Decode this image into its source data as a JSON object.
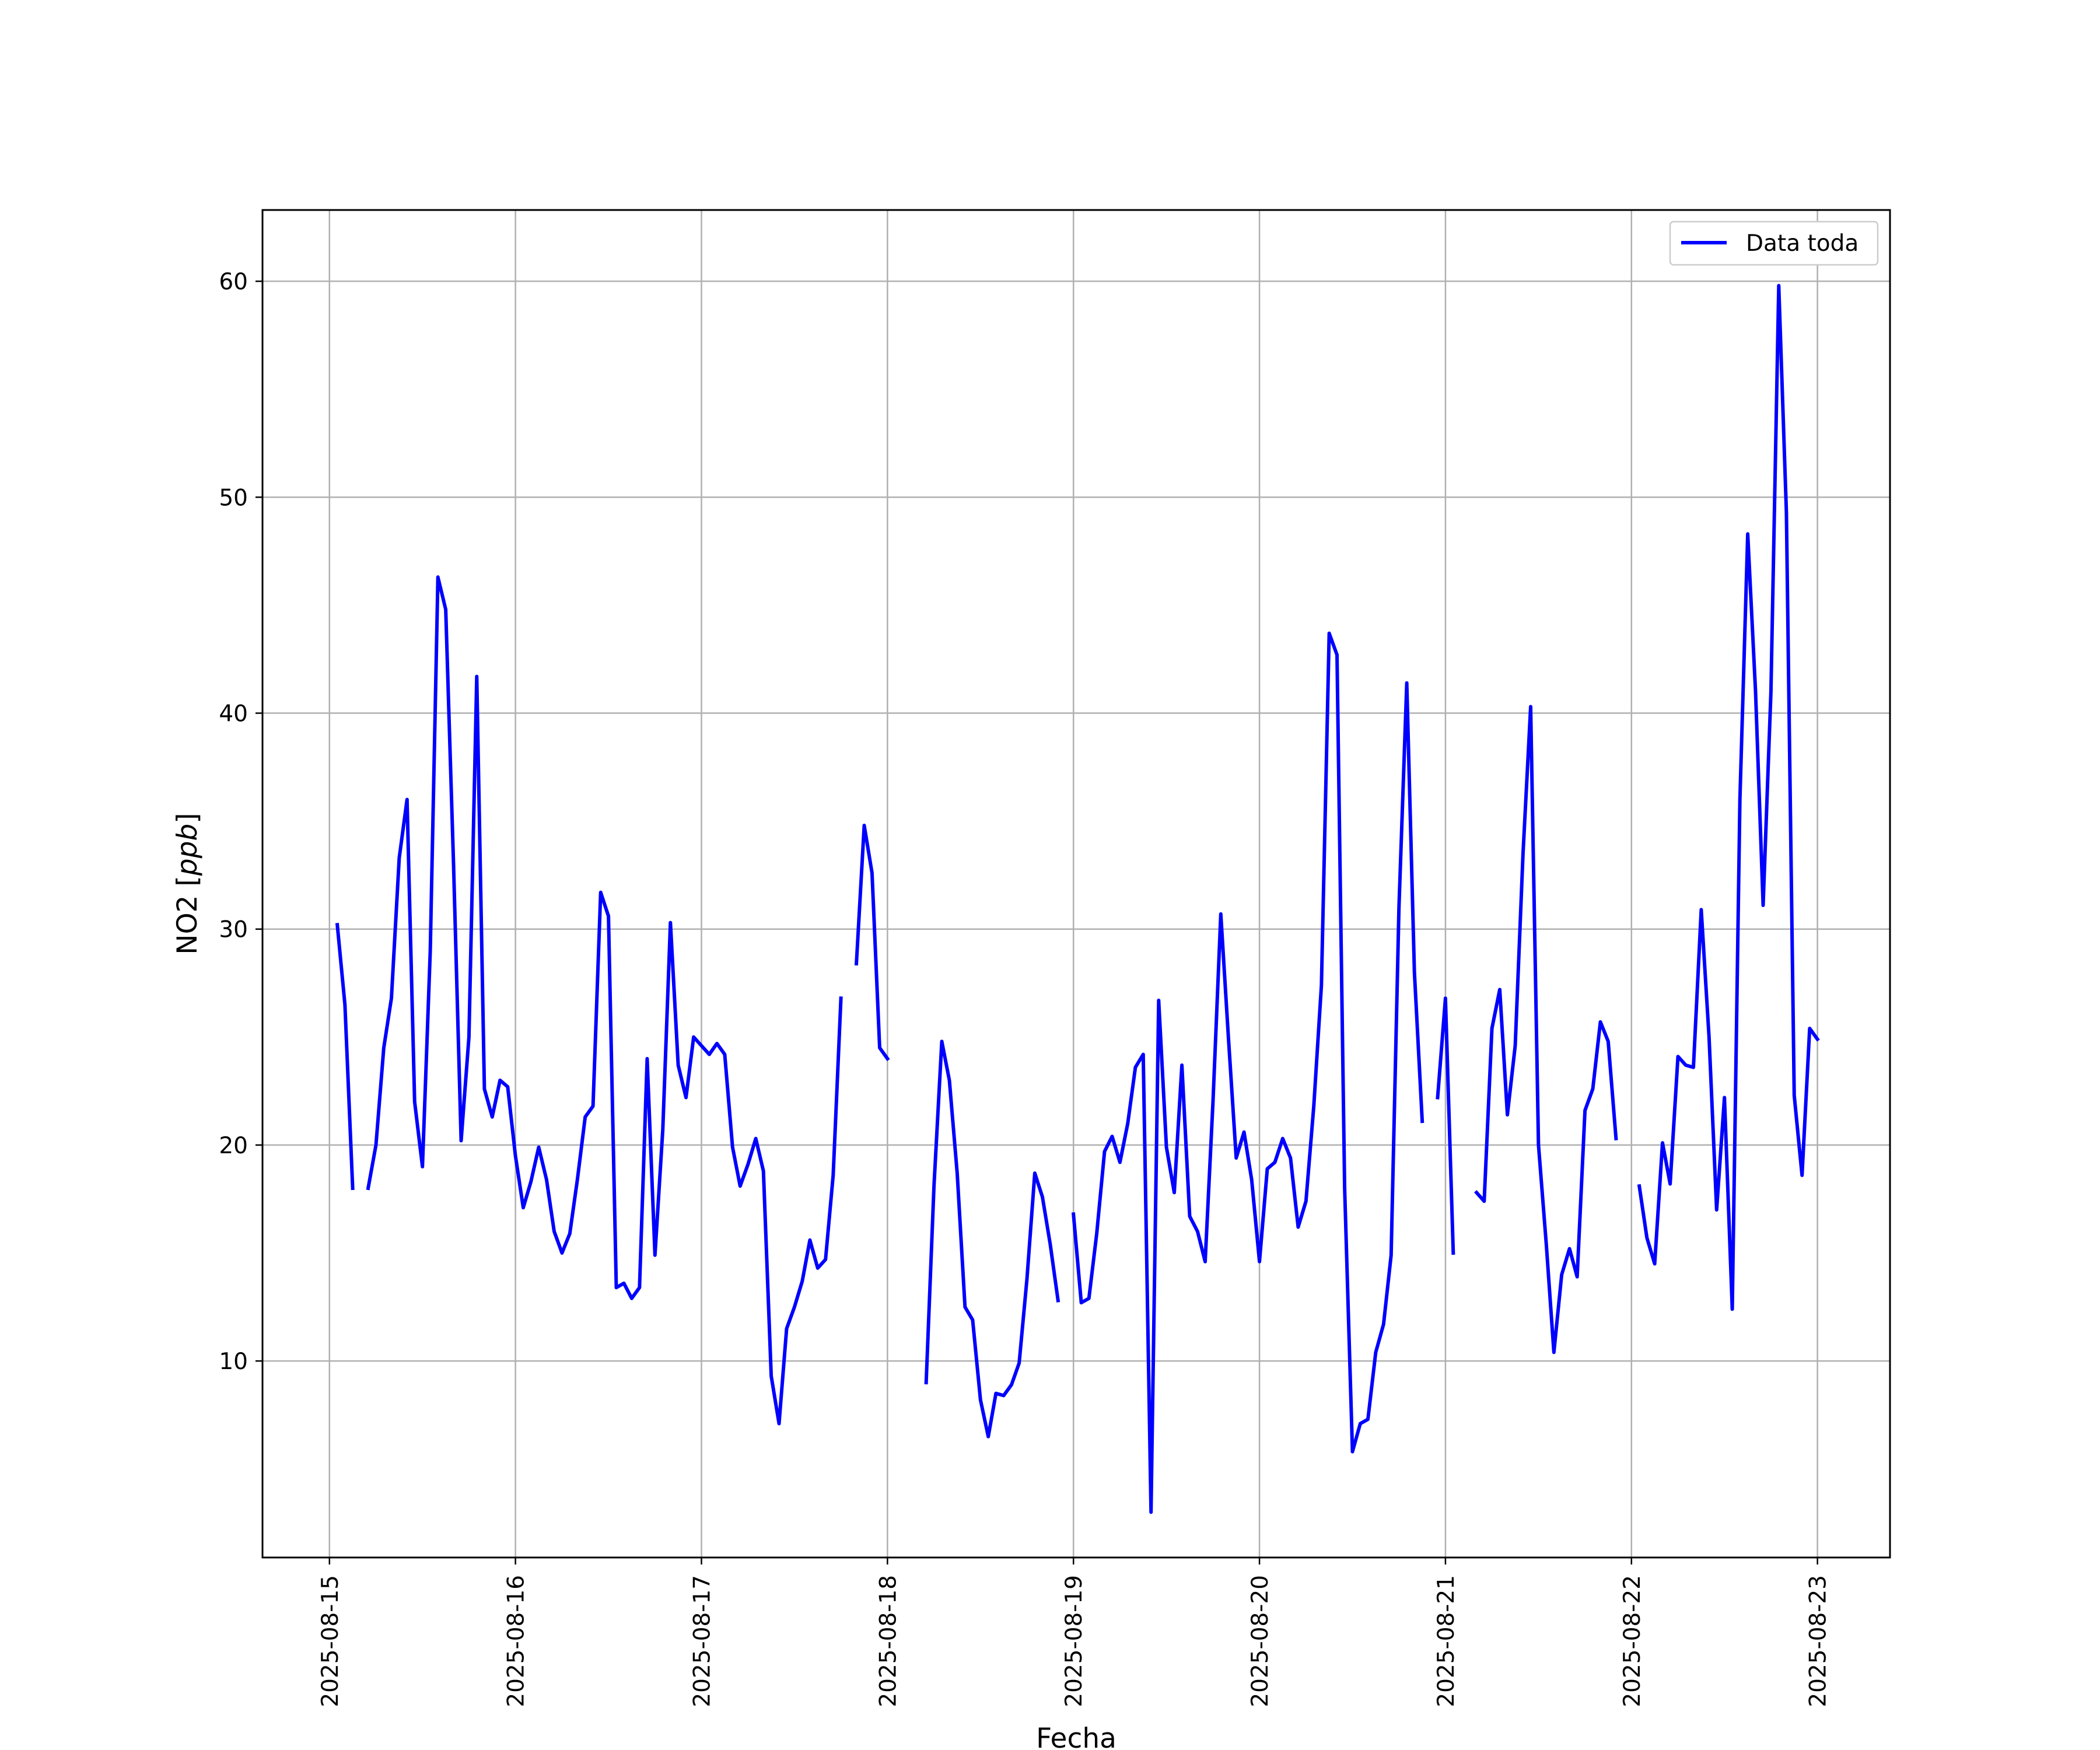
{
  "chart_data": {
    "type": "line",
    "xlabel": "Fecha",
    "ylabel": "NO2",
    "ylabel_unit": "ppb",
    "x_ticks": [
      "2025-08-15",
      "2025-08-16",
      "2025-08-17",
      "2025-08-18",
      "2025-08-19",
      "2025-08-20",
      "2025-08-21",
      "2025-08-22",
      "2025-08-23"
    ],
    "y_ticks": [
      10,
      20,
      30,
      40,
      50,
      60
    ],
    "xlim_days": [
      -0.36,
      8.39
    ],
    "ylim": [
      0.9,
      63.3
    ],
    "grid": true,
    "legend_position": "top-right",
    "series": [
      {
        "name": "Data toda",
        "color": "#0000ff",
        "x_unit": "days since 2025-08-15 00:00",
        "segments": [
          [
            [
              0.042,
              30.2
            ],
            [
              0.083,
              26.5
            ],
            [
              0.125,
              18.0
            ]
          ],
          [
            [
              0.208,
              18.0
            ],
            [
              0.25,
              20.0
            ],
            [
              0.292,
              24.5
            ],
            [
              0.333,
              26.8
            ],
            [
              0.375,
              33.3
            ],
            [
              0.417,
              36.0
            ],
            [
              0.458,
              22.0
            ],
            [
              0.5,
              19.0
            ],
            [
              0.542,
              29.0
            ],
            [
              0.583,
              46.3
            ],
            [
              0.625,
              44.8
            ],
            [
              0.667,
              33.0
            ],
            [
              0.708,
              20.2
            ],
            [
              0.75,
              25.0
            ],
            [
              0.792,
              41.7
            ],
            [
              0.833,
              22.6
            ],
            [
              0.875,
              21.3
            ],
            [
              0.917,
              23.0
            ],
            [
              0.958,
              22.7
            ],
            [
              1.0,
              19.5
            ],
            [
              1.042,
              17.1
            ],
            [
              1.083,
              18.3
            ],
            [
              1.125,
              19.9
            ],
            [
              1.167,
              18.4
            ],
            [
              1.208,
              16.0
            ],
            [
              1.25,
              15.0
            ],
            [
              1.292,
              15.9
            ],
            [
              1.333,
              18.4
            ],
            [
              1.375,
              21.3
            ],
            [
              1.417,
              21.8
            ],
            [
              1.458,
              31.7
            ],
            [
              1.5,
              30.6
            ],
            [
              1.542,
              13.4
            ],
            [
              1.583,
              13.6
            ],
            [
              1.625,
              12.9
            ],
            [
              1.667,
              13.4
            ],
            [
              1.708,
              24.0
            ],
            [
              1.75,
              14.9
            ],
            [
              1.792,
              20.7
            ],
            [
              1.833,
              30.3
            ],
            [
              1.875,
              23.7
            ],
            [
              1.917,
              22.2
            ],
            [
              1.958,
              25.0
            ],
            [
              2.0,
              24.6
            ],
            [
              2.042,
              24.2
            ],
            [
              2.083,
              24.7
            ],
            [
              2.125,
              24.2
            ],
            [
              2.167,
              19.9
            ],
            [
              2.208,
              18.1
            ],
            [
              2.25,
              19.1
            ],
            [
              2.292,
              20.3
            ],
            [
              2.333,
              18.8
            ],
            [
              2.375,
              9.3
            ],
            [
              2.417,
              7.1
            ],
            [
              2.458,
              11.5
            ],
            [
              2.5,
              12.5
            ],
            [
              2.542,
              13.7
            ],
            [
              2.583,
              15.6
            ],
            [
              2.625,
              14.3
            ],
            [
              2.667,
              14.7
            ],
            [
              2.708,
              18.6
            ],
            [
              2.75,
              26.8
            ]
          ],
          [
            [
              2.833,
              28.4
            ],
            [
              2.875,
              34.8
            ],
            [
              2.917,
              32.6
            ],
            [
              2.958,
              24.5
            ],
            [
              3.0,
              24.0
            ]
          ],
          [
            [
              3.208,
              9.0
            ],
            [
              3.25,
              18.1
            ],
            [
              3.292,
              24.8
            ],
            [
              3.333,
              23.0
            ],
            [
              3.375,
              18.7
            ],
            [
              3.417,
              12.5
            ],
            [
              3.458,
              11.9
            ],
            [
              3.5,
              8.2
            ],
            [
              3.542,
              6.5
            ],
            [
              3.583,
              8.5
            ],
            [
              3.625,
              8.4
            ],
            [
              3.667,
              8.9
            ],
            [
              3.708,
              9.9
            ],
            [
              3.75,
              13.8
            ],
            [
              3.792,
              18.7
            ],
            [
              3.833,
              17.6
            ],
            [
              3.875,
              15.4
            ],
            [
              3.917,
              12.8
            ]
          ],
          [
            [
              4.0,
              16.8
            ],
            [
              4.042,
              12.7
            ],
            [
              4.083,
              12.9
            ],
            [
              4.125,
              15.9
            ],
            [
              4.167,
              19.7
            ],
            [
              4.208,
              20.4
            ],
            [
              4.25,
              19.2
            ],
            [
              4.292,
              21.0
            ],
            [
              4.333,
              23.6
            ],
            [
              4.375,
              24.2
            ],
            [
              4.417,
              3.0
            ],
            [
              4.458,
              26.7
            ],
            [
              4.5,
              19.9
            ],
            [
              4.542,
              17.8
            ],
            [
              4.583,
              23.7
            ],
            [
              4.625,
              16.7
            ],
            [
              4.667,
              16.0
            ],
            [
              4.708,
              14.6
            ],
            [
              4.75,
              22.0
            ],
            [
              4.792,
              30.7
            ],
            [
              4.833,
              25.0
            ],
            [
              4.875,
              19.4
            ],
            [
              4.917,
              20.6
            ],
            [
              4.958,
              18.4
            ],
            [
              5.0,
              14.6
            ],
            [
              5.042,
              18.9
            ],
            [
              5.083,
              19.2
            ],
            [
              5.125,
              20.3
            ],
            [
              5.167,
              19.4
            ],
            [
              5.208,
              16.2
            ],
            [
              5.25,
              17.4
            ],
            [
              5.292,
              21.8
            ],
            [
              5.333,
              27.4
            ],
            [
              5.375,
              43.7
            ],
            [
              5.417,
              42.7
            ],
            [
              5.458,
              18.0
            ],
            [
              5.5,
              5.8
            ],
            [
              5.542,
              7.1
            ],
            [
              5.583,
              7.3
            ],
            [
              5.625,
              10.4
            ],
            [
              5.667,
              11.7
            ],
            [
              5.708,
              14.9
            ],
            [
              5.75,
              31.0
            ],
            [
              5.792,
              41.4
            ],
            [
              5.833,
              28.0
            ],
            [
              5.875,
              21.1
            ]
          ],
          [
            [
              5.958,
              22.2
            ],
            [
              6.0,
              26.8
            ],
            [
              6.042,
              15.0
            ]
          ],
          [
            [
              6.167,
              17.8
            ],
            [
              6.208,
              17.4
            ],
            [
              6.25,
              25.4
            ],
            [
              6.292,
              27.2
            ],
            [
              6.333,
              21.4
            ],
            [
              6.375,
              24.6
            ],
            [
              6.417,
              33.5
            ],
            [
              6.458,
              40.3
            ],
            [
              6.5,
              20.0
            ],
            [
              6.542,
              15.4
            ],
            [
              6.583,
              10.4
            ],
            [
              6.625,
              14.0
            ],
            [
              6.667,
              15.2
            ],
            [
              6.708,
              13.9
            ],
            [
              6.75,
              21.6
            ],
            [
              6.792,
              22.6
            ],
            [
              6.833,
              25.7
            ],
            [
              6.875,
              24.8
            ],
            [
              6.917,
              20.3
            ]
          ],
          [
            [
              7.042,
              18.1
            ],
            [
              7.083,
              15.7
            ],
            [
              7.125,
              14.5
            ],
            [
              7.167,
              20.1
            ],
            [
              7.208,
              18.2
            ],
            [
              7.25,
              24.1
            ],
            [
              7.292,
              23.7
            ],
            [
              7.333,
              23.6
            ],
            [
              7.375,
              30.9
            ],
            [
              7.417,
              25.0
            ],
            [
              7.458,
              17.0
            ],
            [
              7.5,
              22.2
            ],
            [
              7.542,
              12.4
            ],
            [
              7.583,
              36.0
            ],
            [
              7.625,
              48.3
            ],
            [
              7.667,
              41.0
            ],
            [
              7.708,
              31.1
            ],
            [
              7.75,
              41.0
            ],
            [
              7.792,
              59.8
            ],
            [
              7.833,
              49.3
            ],
            [
              7.875,
              22.3
            ],
            [
              7.917,
              18.6
            ],
            [
              7.958,
              25.4
            ],
            [
              8.0,
              24.9
            ]
          ]
        ]
      }
    ]
  }
}
